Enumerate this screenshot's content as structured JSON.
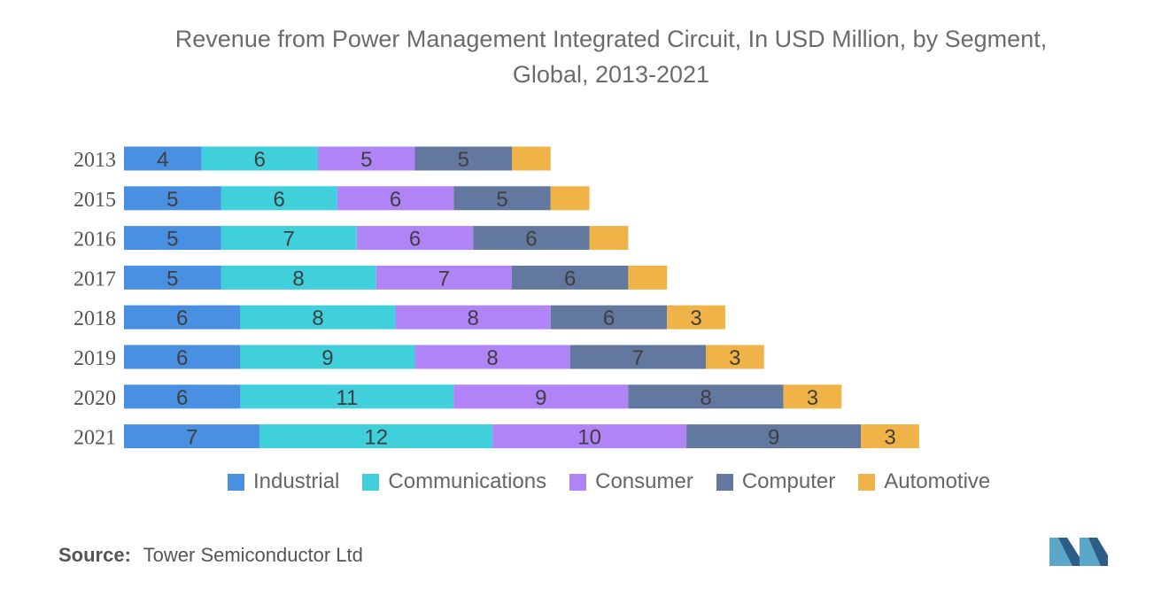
{
  "chart_data": {
    "type": "bar",
    "orientation": "horizontal",
    "stacked": true,
    "title": "Revenue from Power Management Integrated Circuit, In USD Million, by Segment, Global, 2013-2021",
    "title_lines": [
      "Revenue from Power Management Integrated Circuit, In USD Million, by Segment,",
      "Global, 2013-2021"
    ],
    "xlabel": "",
    "ylabel": "",
    "categories": [
      "2013",
      "2015",
      "2016",
      "2017",
      "2018",
      "2019",
      "2020",
      "2021"
    ],
    "series": [
      {
        "name": "Industrial",
        "color": "#4a90e2",
        "values": [
          4,
          5,
          5,
          5,
          6,
          6,
          6,
          7
        ],
        "show_labels": [
          true,
          true,
          true,
          true,
          true,
          true,
          true,
          true
        ]
      },
      {
        "name": "Communications",
        "color": "#3fd0dc",
        "values": [
          6,
          6,
          7,
          8,
          8,
          9,
          11,
          12
        ],
        "show_labels": [
          true,
          true,
          true,
          true,
          true,
          true,
          true,
          true
        ]
      },
      {
        "name": "Consumer",
        "color": "#b083f7",
        "values": [
          5,
          6,
          6,
          7,
          8,
          8,
          9,
          10
        ],
        "show_labels": [
          true,
          true,
          true,
          true,
          true,
          true,
          true,
          true
        ]
      },
      {
        "name": "Computer",
        "color": "#62789f",
        "values": [
          5,
          5,
          6,
          6,
          6,
          7,
          8,
          9
        ],
        "show_labels": [
          true,
          true,
          true,
          true,
          true,
          true,
          true,
          true
        ]
      },
      {
        "name": "Automotive",
        "color": "#f0b347",
        "values": [
          2,
          2,
          2,
          2,
          3,
          3,
          3,
          3
        ],
        "show_labels": [
          false,
          false,
          false,
          false,
          true,
          true,
          true,
          true
        ]
      }
    ],
    "grid": false,
    "legend_position": "bottom"
  },
  "source": {
    "label": "Source:",
    "text": "Tower Semiconductor Ltd"
  },
  "logo": {
    "icon": "mordor-intelligence-logo-icon",
    "colors": [
      "#5aa7c9",
      "#2e5d86"
    ]
  }
}
